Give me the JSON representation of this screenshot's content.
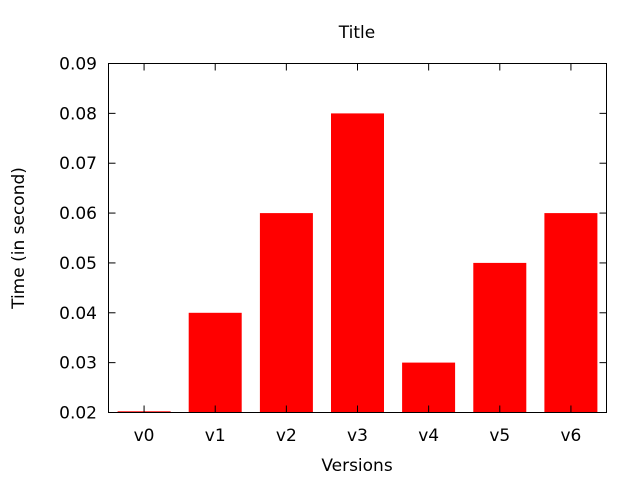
{
  "chart_data": {
    "type": "bar",
    "title": "Title",
    "xlabel": "Versions",
    "ylabel": "Time (in second)",
    "categories": [
      "v0",
      "v1",
      "v2",
      "v3",
      "v4",
      "v5",
      "v6"
    ],
    "values": [
      0.02,
      0.04,
      0.06,
      0.08,
      0.03,
      0.05,
      0.06
    ],
    "ylim": [
      0.02,
      0.09
    ],
    "yticks": [
      "0.02",
      "0.03",
      "0.04",
      "0.05",
      "0.06",
      "0.07",
      "0.08",
      "0.09"
    ],
    "grid": false,
    "legend": "none",
    "bar_color": "#ff0000"
  }
}
